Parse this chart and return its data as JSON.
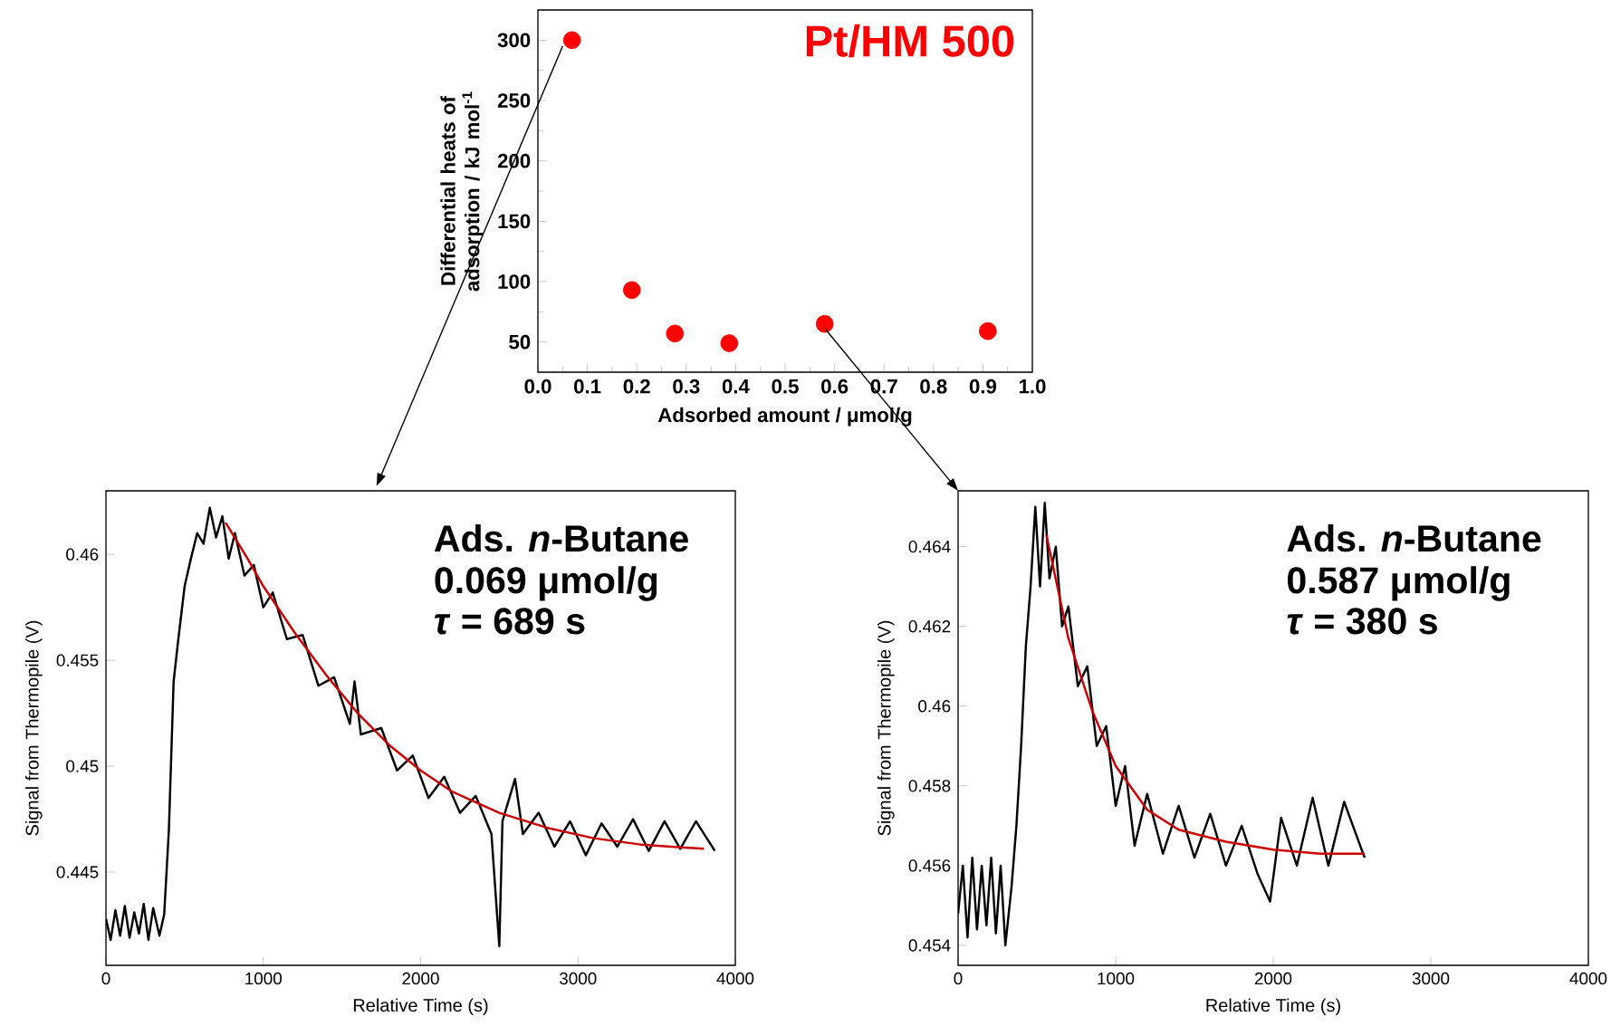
{
  "chart_data": [
    {
      "type": "scatter",
      "xlabel": "Adsorbed amount / μmol/g",
      "ylabel": "Differential heats of adsorption / kJ mol$^{-1}$",
      "annotations": [
        "Pt/HM 500"
      ],
      "x": [
        0.069,
        0.19,
        0.277,
        0.387,
        0.58,
        0.91
      ],
      "values": [
        300,
        93,
        57,
        49,
        65,
        59
      ],
      "color": "#ff0000",
      "marker": "circle",
      "xlim": [
        0,
        1
      ],
      "ylim": [
        25,
        325
      ],
      "xticks": [
        {
          "value": 0,
          "label": "0.0"
        },
        0.1,
        0.2,
        0.3,
        0.4,
        0.5,
        0.6,
        0.7,
        0.8,
        0.9,
        {
          "value": 1,
          "label": "1.0"
        }
      ],
      "yticks": [
        50,
        100,
        150,
        200,
        250,
        300
      ]
    },
    {
      "type": "line",
      "xlabel": "Relative Time (s)",
      "ylabel": "Signal from Thermopile (V)",
      "annotations": [
        "Ads. *n*-Butane",
        "0.069 μmol/g",
        "*τ* = 689 s"
      ],
      "series": [
        {
          "color": "#000000",
          "x": [
            0,
            30,
            60,
            90,
            120,
            150,
            180,
            210,
            240,
            270,
            300,
            340,
            370,
            400,
            430,
            460,
            500,
            540,
            580,
            620,
            660,
            700,
            740,
            780,
            820,
            880,
            940,
            1000,
            1060,
            1150,
            1250,
            1350,
            1450,
            1550,
            1580,
            1620,
            1750,
            1850,
            1950,
            2050,
            2150,
            2250,
            2350,
            2450,
            2500,
            2520,
            2600,
            2650,
            2750,
            2850,
            2950,
            3050,
            3150,
            3250,
            3350,
            3450,
            3550,
            3650,
            3750,
            3870
          ],
          "values": [
            0.4428,
            0.4418,
            0.4432,
            0.442,
            0.4434,
            0.4419,
            0.4431,
            0.4421,
            0.4435,
            0.4418,
            0.4433,
            0.442,
            0.443,
            0.447,
            0.454,
            0.456,
            0.4585,
            0.4598,
            0.461,
            0.4605,
            0.4622,
            0.4608,
            0.4618,
            0.4598,
            0.461,
            0.459,
            0.4595,
            0.4575,
            0.4582,
            0.456,
            0.4562,
            0.4538,
            0.4542,
            0.452,
            0.454,
            0.4515,
            0.4518,
            0.4498,
            0.4505,
            0.4485,
            0.4495,
            0.4478,
            0.4486,
            0.4468,
            0.4415,
            0.4474,
            0.4494,
            0.4468,
            0.4478,
            0.4462,
            0.4474,
            0.4458,
            0.4473,
            0.4462,
            0.4475,
            0.446,
            0.4474,
            0.4461,
            0.4474,
            0.446
          ]
        },
        {
          "color": "#cc0000",
          "x": [
            760,
            900,
            1000,
            1200,
            1400,
            1600,
            1800,
            2000,
            2200,
            2500,
            2800,
            3100,
            3400,
            3800
          ],
          "values": [
            0.4615,
            0.4598,
            0.4585,
            0.4563,
            0.4543,
            0.4525,
            0.451,
            0.4498,
            0.4488,
            0.4478,
            0.4471,
            0.4466,
            0.4463,
            0.4461
          ]
        }
      ],
      "xlim": [
        0,
        4000
      ],
      "ylim": [
        0.4406,
        0.463
      ],
      "xticks": [
        0,
        1000,
        2000,
        3000,
        4000
      ],
      "yticks": [
        0.445,
        0.45,
        0.455,
        0.46
      ]
    },
    {
      "type": "line",
      "xlabel": "Relative Time (s)",
      "ylabel": "Signal from Thermopile (V)",
      "annotations": [
        "Ads. *n*-Butane",
        "0.587 μmol/g",
        "*τ* = 380 s"
      ],
      "series": [
        {
          "color": "#000000",
          "x": [
            0,
            30,
            60,
            90,
            120,
            150,
            180,
            210,
            240,
            270,
            300,
            340,
            370,
            400,
            430,
            460,
            490,
            520,
            550,
            580,
            620,
            660,
            700,
            760,
            820,
            880,
            940,
            1000,
            1060,
            1120,
            1200,
            1300,
            1400,
            1500,
            1600,
            1700,
            1800,
            1900,
            1980,
            2050,
            2150,
            2250,
            2350,
            2450,
            2580
          ],
          "values": [
            0.4548,
            0.456,
            0.4542,
            0.4562,
            0.4544,
            0.456,
            0.4545,
            0.4562,
            0.4543,
            0.456,
            0.454,
            0.4555,
            0.457,
            0.459,
            0.4615,
            0.463,
            0.465,
            0.463,
            0.4651,
            0.4632,
            0.464,
            0.462,
            0.4625,
            0.4605,
            0.461,
            0.459,
            0.4595,
            0.4575,
            0.4585,
            0.4565,
            0.4578,
            0.4563,
            0.4575,
            0.4562,
            0.4573,
            0.456,
            0.457,
            0.4558,
            0.4551,
            0.4572,
            0.456,
            0.4577,
            0.456,
            0.4576,
            0.4562
          ]
        },
        {
          "color": "#cc0000",
          "x": [
            560,
            700,
            850,
            1000,
            1200,
            1400,
            1700,
            2000,
            2300,
            2580
          ],
          "values": [
            0.4643,
            0.4617,
            0.4599,
            0.4585,
            0.4574,
            0.4569,
            0.4566,
            0.4564,
            0.4563,
            0.4563
          ]
        }
      ],
      "xlim": [
        0,
        4000
      ],
      "ylim": [
        0.4535,
        0.4654
      ],
      "xticks": [
        0,
        1000,
        2000,
        3000,
        4000
      ],
      "yticks": [
        0.454,
        0.456,
        0.458,
        0.46,
        0.462,
        0.464
      ]
    }
  ]
}
